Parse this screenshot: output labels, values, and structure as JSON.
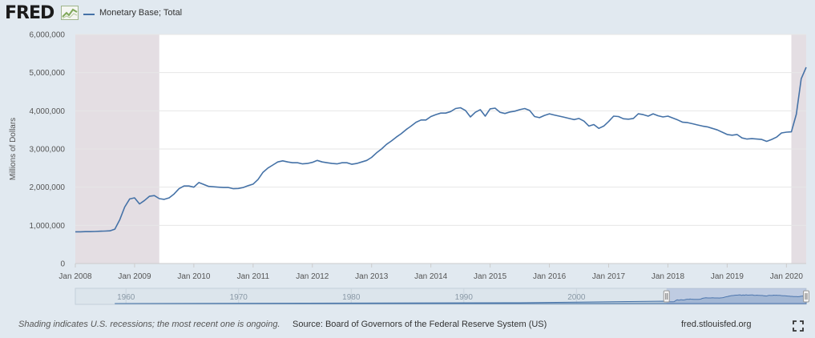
{
  "brand": {
    "logo_text": "FRED",
    "site_url": "fred.stlouisfed.org"
  },
  "colors": {
    "series": "#4572a7",
    "recession": "#e4dee3",
    "plot_bg": "#ffffff",
    "page_bg": "#e1e9f0"
  },
  "footer": {
    "recession_note": "Shading indicates U.S. recessions; the most recent one is ongoing.",
    "source": "Source: Board of Governors of the Federal Reserve System (US)",
    "fullscreen_icon": "fullscreen-icon"
  },
  "navigator": {
    "labels": [
      "1960",
      "1970",
      "1980",
      "1990",
      "2000"
    ]
  },
  "chart_data": {
    "type": "line",
    "title": "",
    "xlabel": "",
    "ylabel": "Millions of Dollars",
    "ylim": [
      0,
      6000000
    ],
    "yticks": [
      0,
      1000000,
      2000000,
      3000000,
      4000000,
      5000000,
      6000000
    ],
    "ytick_labels": [
      "0",
      "1,000,000",
      "2,000,000",
      "3,000,000",
      "4,000,000",
      "5,000,000",
      "6,000,000"
    ],
    "xlim": [
      "2008-01",
      "2020-05"
    ],
    "xtick_labels": [
      "Jan 2008",
      "Jan 2009",
      "Jan 2010",
      "Jan 2011",
      "Jan 2012",
      "Jan 2013",
      "Jan 2014",
      "Jan 2015",
      "Jan 2016",
      "Jan 2017",
      "Jan 2018",
      "Jan 2019",
      "Jan 2020"
    ],
    "grid": true,
    "legend": "top-left",
    "recessions": [
      [
        "2008-01",
        "2009-06"
      ],
      "ongoing from 2020-02"
    ],
    "series": [
      {
        "name": "Monetary Base; Total",
        "color": "#4572a7",
        "x": [
          "2008-01",
          "2008-02",
          "2008-03",
          "2008-04",
          "2008-05",
          "2008-06",
          "2008-07",
          "2008-08",
          "2008-09",
          "2008-10",
          "2008-11",
          "2008-12",
          "2009-01",
          "2009-02",
          "2009-03",
          "2009-04",
          "2009-05",
          "2009-06",
          "2009-07",
          "2009-08",
          "2009-09",
          "2009-10",
          "2009-11",
          "2009-12",
          "2010-01",
          "2010-02",
          "2010-03",
          "2010-04",
          "2010-05",
          "2010-06",
          "2010-07",
          "2010-08",
          "2010-09",
          "2010-10",
          "2010-11",
          "2010-12",
          "2011-01",
          "2011-02",
          "2011-03",
          "2011-04",
          "2011-05",
          "2011-06",
          "2011-07",
          "2011-08",
          "2011-09",
          "2011-10",
          "2011-11",
          "2011-12",
          "2012-01",
          "2012-02",
          "2012-03",
          "2012-04",
          "2012-05",
          "2012-06",
          "2012-07",
          "2012-08",
          "2012-09",
          "2012-10",
          "2012-11",
          "2012-12",
          "2013-01",
          "2013-02",
          "2013-03",
          "2013-04",
          "2013-05",
          "2013-06",
          "2013-07",
          "2013-08",
          "2013-09",
          "2013-10",
          "2013-11",
          "2013-12",
          "2014-01",
          "2014-02",
          "2014-03",
          "2014-04",
          "2014-05",
          "2014-06",
          "2014-07",
          "2014-08",
          "2014-09",
          "2014-10",
          "2014-11",
          "2014-12",
          "2015-01",
          "2015-02",
          "2015-03",
          "2015-04",
          "2015-05",
          "2015-06",
          "2015-07",
          "2015-08",
          "2015-09",
          "2015-10",
          "2015-11",
          "2015-12",
          "2016-01",
          "2016-02",
          "2016-03",
          "2016-04",
          "2016-05",
          "2016-06",
          "2016-07",
          "2016-08",
          "2016-09",
          "2016-10",
          "2016-11",
          "2016-12",
          "2017-01",
          "2017-02",
          "2017-03",
          "2017-04",
          "2017-05",
          "2017-06",
          "2017-07",
          "2017-08",
          "2017-09",
          "2017-10",
          "2017-11",
          "2017-12",
          "2018-01",
          "2018-02",
          "2018-03",
          "2018-04",
          "2018-05",
          "2018-06",
          "2018-07",
          "2018-08",
          "2018-09",
          "2018-10",
          "2018-11",
          "2018-12",
          "2019-01",
          "2019-02",
          "2019-03",
          "2019-04",
          "2019-05",
          "2019-06",
          "2019-07",
          "2019-08",
          "2019-09",
          "2019-10",
          "2019-11",
          "2019-12",
          "2020-01",
          "2020-02",
          "2020-03",
          "2020-04",
          "2020-05"
        ],
        "y": [
          830000,
          830000,
          835000,
          835000,
          840000,
          845000,
          850000,
          855000,
          900000,
          1150000,
          1480000,
          1690000,
          1720000,
          1560000,
          1650000,
          1760000,
          1780000,
          1700000,
          1680000,
          1720000,
          1820000,
          1960000,
          2030000,
          2030000,
          2000000,
          2120000,
          2070000,
          2020000,
          2010000,
          2000000,
          1990000,
          1990000,
          1960000,
          1965000,
          1990000,
          2040000,
          2080000,
          2200000,
          2390000,
          2500000,
          2580000,
          2660000,
          2690000,
          2660000,
          2640000,
          2640000,
          2610000,
          2620000,
          2650000,
          2700000,
          2660000,
          2640000,
          2620000,
          2610000,
          2640000,
          2640000,
          2600000,
          2620000,
          2660000,
          2700000,
          2780000,
          2900000,
          3000000,
          3120000,
          3210000,
          3310000,
          3400000,
          3510000,
          3600000,
          3700000,
          3760000,
          3760000,
          3850000,
          3900000,
          3940000,
          3940000,
          3980000,
          4060000,
          4080000,
          4010000,
          3840000,
          3960000,
          4030000,
          3860000,
          4050000,
          4070000,
          3960000,
          3930000,
          3970000,
          3990000,
          4030000,
          4060000,
          4010000,
          3850000,
          3820000,
          3880000,
          3920000,
          3890000,
          3860000,
          3830000,
          3800000,
          3770000,
          3800000,
          3730000,
          3600000,
          3640000,
          3540000,
          3600000,
          3720000,
          3860000,
          3850000,
          3790000,
          3780000,
          3800000,
          3920000,
          3900000,
          3860000,
          3920000,
          3870000,
          3840000,
          3860000,
          3810000,
          3760000,
          3700000,
          3690000,
          3660000,
          3630000,
          3600000,
          3580000,
          3540000,
          3500000,
          3440000,
          3380000,
          3360000,
          3380000,
          3290000,
          3260000,
          3270000,
          3260000,
          3250000,
          3200000,
          3250000,
          3310000,
          3420000,
          3440000,
          3450000,
          3910000,
          4840000,
          5140000
        ]
      }
    ]
  }
}
